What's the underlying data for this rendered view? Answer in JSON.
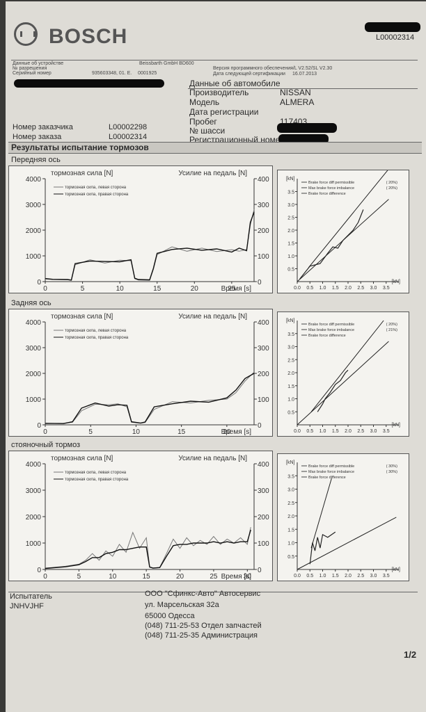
{
  "header": {
    "brand": "BOSCH",
    "doc_number": "L00002314",
    "device_label": "Данные об устройстве",
    "device_name": "Beissbarth GmbH BD600",
    "permit_label": "№ разрешения",
    "serial_label": "Серийный номер",
    "serial_value": "935603348, 01. E.",
    "serial_extra": "0001925",
    "software_version": "Версия программного обеспечения/L V2.52/SL V2.30",
    "next_cert_label": "Дата следующей сертификации",
    "next_cert_value": "16.07.2013"
  },
  "vehicle": {
    "title": "Данные об автомобиле",
    "manufacturer_label": "Производитель",
    "manufacturer_value": "NISSAN",
    "model_label": "Модель",
    "model_value": "ALMERA",
    "reg_date_label": "Дата регистрации",
    "mileage_label": "Пробег",
    "mileage_value": "117403",
    "chassis_label": "№ шасси",
    "reg_number_label": "Регистрационный номер"
  },
  "customer": {
    "customer_no_label": "Номер заказчика",
    "customer_no_value": "L00002298",
    "order_no_label": "Номер заказа",
    "order_no_value": "L00002314"
  },
  "results_title": "Результаты испытание тормозов",
  "sections": [
    {
      "title": "Передняя ось",
      "left_title": "тормозная сила [N]",
      "right_title": "Усилие на педаль [N]",
      "time_label": "Время [s]",
      "legend": [
        "тормозная сила, левая сторона",
        "тормозная сила, правая сторона"
      ]
    },
    {
      "title": "Задняя ось",
      "left_title": "тормозная сила [N]",
      "right_title": "Усилие на педаль [N]",
      "time_label": "Время [s]",
      "legend": [
        "тормозная сила, левая сторона",
        "тормозная сила, правая сторона"
      ]
    },
    {
      "title": "стояночный тормоз",
      "left_title": "тормозная сила [N]",
      "right_title": "Усилие на педаль [N]",
      "time_label": "Время [s]",
      "legend": [
        "тормозная сила, левая сторона",
        "тормозная сила, правая сторона"
      ]
    }
  ],
  "footer": {
    "tester_label": "Испытатель",
    "tester_value": "JNHVJHF",
    "company": "ООО \"Сфинкс-Авто\" Автосервис",
    "street": "ул. Марсельская 32а",
    "city": "65000 Одесса",
    "phone1": "(048) 711-25-53 Отдел запчастей",
    "phone2": "(048) 711-25-35 Администрация",
    "page": "1/2"
  },
  "chart_data": [
    {
      "type": "line",
      "title": "тормозная сила [N]",
      "xlabel": "Время [s]",
      "ylabel": "тормозная сила [N]",
      "y2label": "Усилие на педаль [N]",
      "xlim": [
        0,
        28
      ],
      "ylim": [
        0,
        4000
      ],
      "y2lim": [
        0,
        400
      ],
      "x_ticks": [
        0,
        5,
        10,
        15,
        20,
        25
      ],
      "y_ticks": [
        0,
        1000,
        2000,
        3000,
        4000
      ],
      "y2_ticks": [
        0,
        100,
        200,
        300,
        400
      ],
      "series": [
        {
          "name": "тормозная сила, левая сторона",
          "x": [
            0,
            1,
            3,
            3.5,
            4,
            6,
            8,
            10,
            11.5,
            12,
            12.5,
            14,
            14.5,
            15,
            17,
            19,
            21,
            23,
            25,
            26,
            27,
            27.5,
            28
          ],
          "y": [
            100,
            80,
            70,
            50,
            650,
            850,
            720,
            830,
            810,
            110,
            60,
            50,
            480,
            1050,
            1350,
            1180,
            1300,
            1170,
            1240,
            1180,
            1250,
            2200,
            2800
          ]
        },
        {
          "name": "тормозная сила, правая сторона",
          "x": [
            0,
            1,
            3,
            3.5,
            4,
            6,
            8,
            10,
            11.5,
            12,
            12.5,
            14,
            14.5,
            15,
            17,
            19,
            21,
            23,
            25,
            26,
            27,
            27.5,
            28
          ],
          "y": [
            120,
            90,
            80,
            60,
            700,
            800,
            780,
            770,
            850,
            130,
            80,
            70,
            520,
            1100,
            1250,
            1300,
            1220,
            1270,
            1150,
            1300,
            1200,
            2300,
            2700
          ]
        }
      ],
      "legend": "top-left",
      "grid": false
    },
    {
      "type": "line",
      "title": "тормозная сила [N]",
      "xlabel": "Время [s]",
      "ylabel": "тормозная сила [N]",
      "y2label": "Усилие на педаль [N]",
      "xlim": [
        0,
        23
      ],
      "ylim": [
        0,
        4000
      ],
      "y2lim": [
        0,
        400
      ],
      "x_ticks": [
        0,
        5,
        10,
        15,
        20
      ],
      "y_ticks": [
        0,
        1000,
        2000,
        3000,
        4000
      ],
      "y2_ticks": [
        0,
        100,
        200,
        300,
        400
      ],
      "series": [
        {
          "name": "тормозная сила, левая сторона",
          "x": [
            0,
            2,
            3,
            4,
            5.5,
            7,
            8,
            9,
            9.5,
            10.5,
            11,
            12,
            14,
            16,
            18,
            20,
            21,
            22,
            23
          ],
          "y": [
            50,
            60,
            100,
            550,
            800,
            780,
            820,
            700,
            100,
            60,
            90,
            600,
            900,
            850,
            950,
            1000,
            1250,
            1700,
            2050
          ]
        },
        {
          "name": "тормозная сила, правая сторона",
          "x": [
            0,
            2,
            3,
            4,
            5.5,
            7,
            8,
            9,
            9.5,
            10.5,
            11,
            12,
            14,
            16,
            18,
            20,
            21,
            22,
            23
          ],
          "y": [
            60,
            50,
            120,
            650,
            850,
            730,
            780,
            760,
            120,
            70,
            110,
            700,
            820,
            920,
            880,
            1050,
            1350,
            1800,
            2000
          ]
        }
      ],
      "legend": "top-left",
      "grid": false
    },
    {
      "type": "line",
      "title": "тормозная сила [N]",
      "xlabel": "Время [s]",
      "ylabel": "тормозная сила [N]",
      "y2label": "Усилие на педаль [N]",
      "xlim": [
        0,
        31
      ],
      "ylim": [
        0,
        4000
      ],
      "y2lim": [
        0,
        400
      ],
      "x_ticks": [
        0,
        5,
        10,
        15,
        20,
        25,
        30
      ],
      "y_ticks": [
        0,
        1000,
        2000,
        3000,
        4000
      ],
      "y2_ticks": [
        0,
        100,
        200,
        300,
        400
      ],
      "series": [
        {
          "name": "тормозная сила, левая сторона",
          "x": [
            0,
            3,
            5,
            6,
            7,
            8,
            9,
            10,
            11,
            12,
            13,
            14,
            15,
            15.5,
            16,
            17,
            18,
            19,
            20,
            21,
            22,
            23,
            24,
            25,
            26,
            27,
            28,
            29,
            30,
            30.5
          ],
          "y": [
            50,
            120,
            200,
            350,
            600,
            350,
            700,
            500,
            950,
            650,
            1400,
            800,
            1200,
            100,
            60,
            80,
            600,
            1150,
            800,
            1200,
            900,
            1100,
            950,
            1250,
            950,
            1150,
            1000,
            1200,
            950,
            1600
          ]
        },
        {
          "name": "тормозная сила, правая сторона",
          "x": [
            0,
            3,
            5,
            6,
            7,
            8,
            9,
            10,
            11,
            12,
            13,
            14,
            15,
            15.5,
            16,
            17,
            18,
            19,
            20,
            21,
            22,
            23,
            24,
            25,
            26,
            27,
            28,
            29,
            30,
            30.5
          ],
          "y": [
            40,
            100,
            180,
            300,
            450,
            450,
            600,
            650,
            750,
            750,
            800,
            850,
            850,
            90,
            50,
            70,
            500,
            900,
            950,
            950,
            1000,
            1000,
            1000,
            1050,
            1000,
            1050,
            1000,
            1050,
            1050,
            1500
          ]
        }
      ],
      "legend": "top-left",
      "grid": false
    },
    {
      "type": "line",
      "title": "",
      "xlabel": "[kN]",
      "ylabel": "[kN]",
      "xlim": [
        0,
        4
      ],
      "ylim": [
        0,
        4
      ],
      "x_ticks": [
        0.0,
        0.5,
        1.0,
        1.5,
        2.0,
        2.5,
        3.0,
        3.5
      ],
      "y_ticks": [
        0.5,
        1.0,
        1.5,
        2.0,
        2.5,
        3.0,
        3.5
      ],
      "legend_entries": [
        {
          "name": "Brake force diff permissible",
          "pct": "20%"
        },
        {
          "name": "Max brake force imbalance",
          "pct": "20%"
        },
        {
          "name": "Brake force difference",
          "pct": ""
        }
      ],
      "series": [
        {
          "name": "Brake force diff permissible",
          "x": [
            0.45,
            3.7
          ],
          "y": [
            0.55,
            4.5
          ]
        },
        {
          "name": "Max brake force imbalance",
          "x": [
            0,
            3.6
          ],
          "y": [
            0,
            3.2
          ]
        },
        {
          "name": "Brake force difference",
          "x": [
            0.1,
            0.5,
            0.9,
            1.2,
            1.4,
            1.6,
            1.8,
            2.0,
            2.2,
            2.4,
            2.6
          ],
          "y": [
            0.1,
            0.6,
            0.7,
            1.1,
            1.35,
            1.3,
            1.6,
            1.8,
            2.0,
            2.3,
            2.8
          ]
        }
      ]
    },
    {
      "type": "line",
      "title": "",
      "xlabel": "[kN]",
      "ylabel": "[kN]",
      "xlim": [
        0,
        4
      ],
      "ylim": [
        0,
        4
      ],
      "x_ticks": [
        0.0,
        0.5,
        1.0,
        1.5,
        2.0,
        2.5,
        3.0,
        3.5
      ],
      "y_ticks": [
        0.5,
        1.0,
        1.5,
        2.0,
        2.5,
        3.0,
        3.5
      ],
      "legend_entries": [
        {
          "name": "Brake force diff permissible",
          "pct": "20%"
        },
        {
          "name": "Max brake force imbalance",
          "pct": "21%"
        },
        {
          "name": "Brake force difference",
          "pct": ""
        }
      ],
      "series": [
        {
          "name": "Brake force diff permissible",
          "x": [
            0.55,
            3.4
          ],
          "y": [
            0.5,
            4.0
          ]
        },
        {
          "name": "Max brake force imbalance",
          "x": [
            0,
            3.6
          ],
          "y": [
            0,
            3.2
          ]
        },
        {
          "name": "Brake force difference",
          "x": [
            0.8,
            1.0,
            1.1,
            1.3,
            1.5,
            1.7,
            1.9,
            2.0
          ],
          "y": [
            0.5,
            0.8,
            1.0,
            1.25,
            1.55,
            1.7,
            2.0,
            2.1
          ]
        }
      ]
    },
    {
      "type": "line",
      "title": "",
      "xlabel": "[kN]",
      "ylabel": "[kN]",
      "xlim": [
        0,
        4
      ],
      "ylim": [
        0,
        4
      ],
      "x_ticks": [
        0.0,
        0.5,
        1.0,
        1.5,
        2.0,
        2.5,
        3.0,
        3.5
      ],
      "y_ticks": [
        0.5,
        1.0,
        1.5,
        2.0,
        2.5,
        3.0,
        3.5
      ],
      "legend_entries": [
        {
          "name": "Brake force diff permissible",
          "pct": "30%"
        },
        {
          "name": "Max brake force imbalance",
          "pct": "30%"
        },
        {
          "name": "Brake force difference",
          "pct": ""
        }
      ],
      "series": [
        {
          "name": "Brake force diff permissible",
          "x": [
            0.55,
            1.35
          ],
          "y": [
            0.8,
            3.4
          ]
        },
        {
          "name": "Max brake force imbalance",
          "x": [
            0,
            3.9
          ],
          "y": [
            0,
            1.95
          ]
        },
        {
          "name": "Brake force difference",
          "x": [
            0.5,
            0.6,
            0.7,
            0.8,
            0.9,
            1.0,
            1.2,
            1.5
          ],
          "y": [
            0.2,
            1.0,
            0.7,
            1.2,
            0.8,
            1.3,
            1.2,
            1.4
          ]
        }
      ]
    }
  ]
}
